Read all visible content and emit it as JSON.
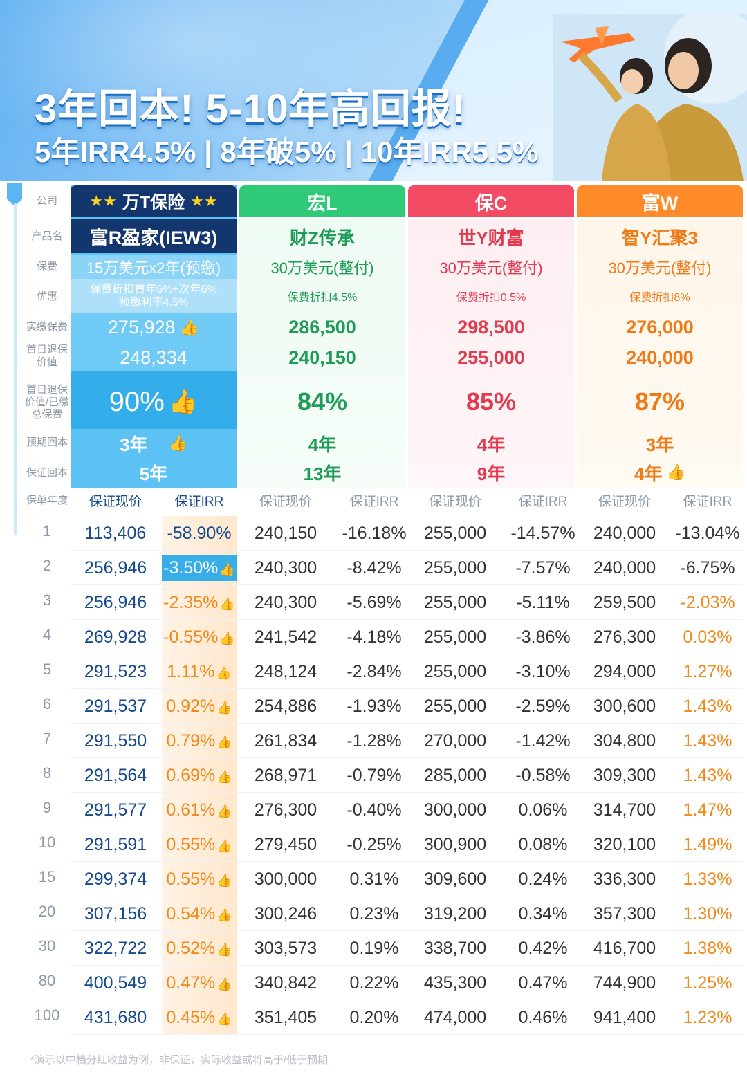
{
  "hero": {
    "title": "3年回本! 5-10年高回报!",
    "subtitle": "5年IRR4.5% | 8年破5% | 10年IRR5.5%"
  },
  "labels": {
    "company": "公司",
    "product": "产品名",
    "premium": "保费",
    "discount": "优惠",
    "paid": "实缴保费",
    "day1_value": "首日退保价值",
    "day1_ratio": "首日退保价值/已缴总保费",
    "expected_breakeven": "预期回本",
    "guaranteed_breakeven": "保证回本",
    "policy_year": "保单年度"
  },
  "companies": [
    {
      "name": "万T保险",
      "product": "富R盈家(IEW3)",
      "premium": "15万美元x2年(预缴)",
      "discount_line1": "保费折扣首年6%+次年6%",
      "discount_line2": "预缴利率4.5%",
      "paid": "275,928",
      "day1_value": "248,334",
      "ratio": "90%",
      "expected": "3年",
      "guaranteed": "5年",
      "colors": {
        "head": "#14366e",
        "accent": "#5cc1f3"
      }
    },
    {
      "name": "宏L",
      "product": "财Z传承",
      "premium": "30万美元(整付)",
      "discount": "保费折扣4.5%",
      "paid": "286,500",
      "day1_value": "240,150",
      "ratio": "84%",
      "expected": "4年",
      "guaranteed": "13年",
      "colors": {
        "head": "#2fca77",
        "text": "#1f9c57"
      }
    },
    {
      "name": "保C",
      "product": "世Y财富",
      "premium": "30万美元(整付)",
      "discount": "保费折扣0.5%",
      "paid": "298,500",
      "day1_value": "255,000",
      "ratio": "85%",
      "expected": "4年",
      "guaranteed": "9年",
      "colors": {
        "head": "#f24b63",
        "text": "#e23a4f"
      }
    },
    {
      "name": "富W",
      "product": "智Y汇聚3",
      "premium": "30万美元(整付)",
      "discount": "保费折扣8%",
      "paid": "276,000",
      "day1_value": "240,000",
      "ratio": "87%",
      "expected": "3年",
      "guaranteed": "4年",
      "colors": {
        "head": "#ff8a2a",
        "text": "#ef7a18"
      }
    }
  ],
  "sub_headers": {
    "cash_value": "保证现价",
    "irr": "保证IRR"
  },
  "rows": [
    {
      "year": "1",
      "v": [
        "113,406",
        "-58.90%",
        "240,150",
        "-16.18%",
        "255,000",
        "-14.57%",
        "240,000",
        "-13.04%"
      ]
    },
    {
      "year": "2",
      "v": [
        "256,946",
        "-3.50%",
        "240,300",
        "-8.42%",
        "255,000",
        "-7.57%",
        "240,000",
        "-6.75%"
      ]
    },
    {
      "year": "3",
      "v": [
        "256,946",
        "-2.35%",
        "240,300",
        "-5.69%",
        "255,000",
        "-5.11%",
        "259,500",
        "-2.03%"
      ]
    },
    {
      "year": "4",
      "v": [
        "269,928",
        "-0.55%",
        "241,542",
        "-4.18%",
        "255,000",
        "-3.86%",
        "276,300",
        "0.03%"
      ]
    },
    {
      "year": "5",
      "v": [
        "291,523",
        "1.11%",
        "248,124",
        "-2.84%",
        "255,000",
        "-3.10%",
        "294,000",
        "1.27%"
      ]
    },
    {
      "year": "6",
      "v": [
        "291,537",
        "0.92%",
        "254,886",
        "-1.93%",
        "255,000",
        "-2.59%",
        "300,600",
        "1.43%"
      ]
    },
    {
      "year": "7",
      "v": [
        "291,550",
        "0.79%",
        "261,834",
        "-1.28%",
        "270,000",
        "-1.42%",
        "304,800",
        "1.43%"
      ]
    },
    {
      "year": "8",
      "v": [
        "291,564",
        "0.69%",
        "268,971",
        "-0.79%",
        "285,000",
        "-0.58%",
        "309,300",
        "1.43%"
      ]
    },
    {
      "year": "9",
      "v": [
        "291,577",
        "0.61%",
        "276,300",
        "-0.40%",
        "300,000",
        "0.06%",
        "314,700",
        "1.47%"
      ]
    },
    {
      "year": "10",
      "v": [
        "291,591",
        "0.55%",
        "279,450",
        "-0.25%",
        "300,900",
        "0.08%",
        "320,100",
        "1.49%"
      ]
    },
    {
      "year": "15",
      "v": [
        "299,374",
        "0.55%",
        "300,000",
        "0.31%",
        "309,600",
        "0.24%",
        "336,300",
        "1.33%"
      ]
    },
    {
      "year": "20",
      "v": [
        "307,156",
        "0.54%",
        "300,246",
        "0.23%",
        "319,200",
        "0.34%",
        "357,300",
        "1.30%"
      ]
    },
    {
      "year": "30",
      "v": [
        "322,722",
        "0.52%",
        "303,573",
        "0.19%",
        "338,700",
        "0.42%",
        "416,700",
        "1.38%"
      ]
    },
    {
      "year": "80",
      "v": [
        "400,549",
        "0.47%",
        "340,842",
        "0.22%",
        "435,300",
        "0.47%",
        "744,900",
        "1.25%"
      ]
    },
    {
      "year": "100",
      "v": [
        "431,680",
        "0.45%",
        "351,405",
        "0.20%",
        "474,000",
        "0.46%",
        "941,400",
        "1.23%"
      ]
    }
  ],
  "orange_d_from_row": 2,
  "thumb_icon": "thumbs-up-icon",
  "footnote": "*演示以中档分红收益为例，非保证，实际收益或将高于/低于预期"
}
